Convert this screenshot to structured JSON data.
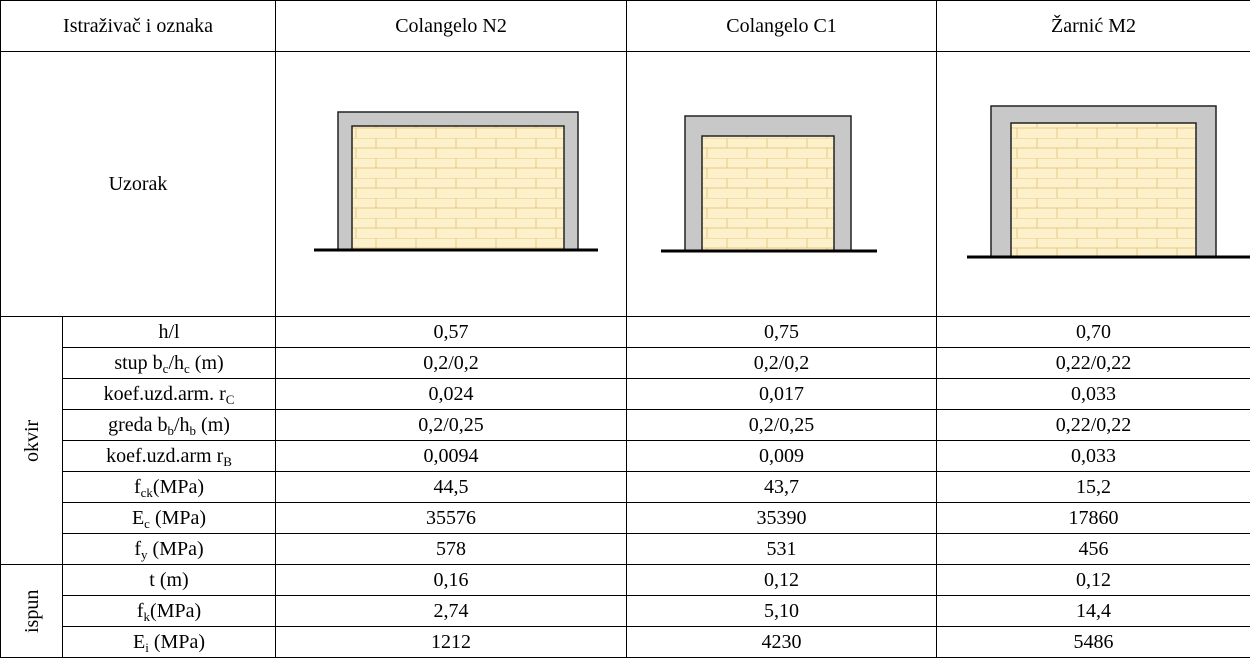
{
  "table": {
    "header": [
      "Istraživač i oznaka",
      "Colangelo N2",
      "Colangelo C1",
      "Žarnić M2"
    ],
    "sample_label": "Uzorak",
    "groups": [
      {
        "name": "okvir",
        "rows": [
          {
            "label": [
              {
                "t": "h/l"
              }
            ],
            "values": [
              "0,57",
              "0,75",
              "0,70"
            ]
          },
          {
            "label": [
              {
                "t": "stup b"
              },
              {
                "sub": "c"
              },
              {
                "t": "/h"
              },
              {
                "sub": "c"
              },
              {
                "t": " (m)"
              }
            ],
            "values": [
              "0,2/0,2",
              "0,2/0,2",
              "0,22/0,22"
            ]
          },
          {
            "label": [
              {
                "t": "koef.uzd.arm. r"
              },
              {
                "sub": "C"
              }
            ],
            "values": [
              "0,024",
              "0,017",
              "0,033"
            ]
          },
          {
            "label": [
              {
                "t": "greda b"
              },
              {
                "sub": "b"
              },
              {
                "t": "/h"
              },
              {
                "sub": "b"
              },
              {
                "t": " (m)"
              }
            ],
            "values": [
              "0,2/0,25",
              "0,2/0,25",
              "0,22/0,22"
            ]
          },
          {
            "label": [
              {
                "t": "koef.uzd.arm r"
              },
              {
                "sub": "B"
              }
            ],
            "values": [
              "0,0094",
              "0,009",
              "0,033"
            ]
          },
          {
            "label": [
              {
                "t": "f"
              },
              {
                "sub": "ck"
              },
              {
                "t": "(MPa)"
              }
            ],
            "values": [
              "44,5",
              "43,7",
              "15,2"
            ]
          },
          {
            "label": [
              {
                "t": "E"
              },
              {
                "sub": "c"
              },
              {
                "t": " (MPa)"
              }
            ],
            "values": [
              "35576",
              "35390",
              "17860"
            ]
          },
          {
            "label": [
              {
                "t": "f"
              },
              {
                "sub": "y"
              },
              {
                "t": " (MPa)"
              }
            ],
            "values": [
              "578",
              "531",
              "456"
            ]
          }
        ]
      },
      {
        "name": "ispun",
        "rows": [
          {
            "label": [
              {
                "t": "t (m)"
              }
            ],
            "values": [
              "0,16",
              "0,12",
              "0,12"
            ]
          },
          {
            "label": [
              {
                "t": "f"
              },
              {
                "sub": "k"
              },
              {
                "t": "(MPa)"
              }
            ],
            "values": [
              "2,74",
              "5,10",
              "14,4"
            ]
          },
          {
            "label": [
              {
                "t": "E"
              },
              {
                "sub": "i"
              },
              {
                "t": " (MPa)"
              }
            ],
            "values": [
              "1212",
              "4230",
              "5486"
            ]
          }
        ]
      }
    ]
  }
}
